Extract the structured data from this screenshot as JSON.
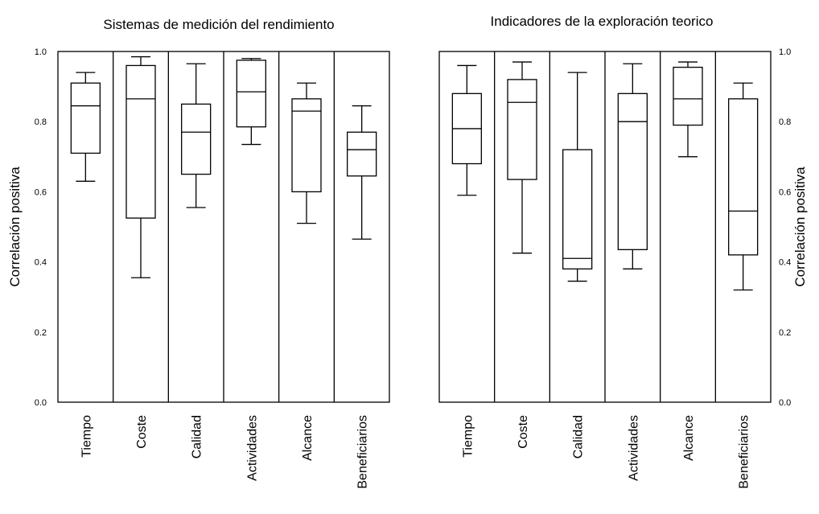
{
  "chart_data": [
    {
      "type": "box",
      "title": "Sistemas de medición del rendimiento",
      "ylabel": "Correlación positiva",
      "ylim": [
        0,
        1
      ],
      "yticks": [
        "0.0",
        "0.2",
        "0.4",
        "0.6",
        "0.8",
        "1.0"
      ],
      "y_axis_side": "left",
      "categories": [
        "Tiempo",
        "Coste",
        "Calidad",
        "Actividades",
        "Alcance",
        "Beneficiarios"
      ],
      "boxes": [
        {
          "whisker_low": 0.63,
          "q1": 0.71,
          "median": 0.845,
          "q3": 0.91,
          "whisker_high": 0.94
        },
        {
          "whisker_low": 0.355,
          "q1": 0.525,
          "median": 0.865,
          "q3": 0.96,
          "whisker_high": 0.985
        },
        {
          "whisker_low": 0.555,
          "q1": 0.65,
          "median": 0.77,
          "q3": 0.85,
          "whisker_high": 0.965
        },
        {
          "whisker_low": 0.735,
          "q1": 0.785,
          "median": 0.885,
          "q3": 0.975,
          "whisker_high": 0.98
        },
        {
          "whisker_low": 0.51,
          "q1": 0.6,
          "median": 0.83,
          "q3": 0.865,
          "whisker_high": 0.91
        },
        {
          "whisker_low": 0.465,
          "q1": 0.645,
          "median": 0.72,
          "q3": 0.77,
          "whisker_high": 0.845
        }
      ]
    },
    {
      "type": "box",
      "title": "Indicadores de la exploración teorico",
      "ylabel": "Correlación positiva",
      "ylim": [
        0,
        1
      ],
      "yticks": [
        "0.0",
        "0.2",
        "0.4",
        "0.6",
        "0.8",
        "1.0"
      ],
      "y_axis_side": "right",
      "categories": [
        "Tiempo",
        "Coste",
        "Calidad",
        "Actividades",
        "Alcance",
        "Beneficiarios"
      ],
      "boxes": [
        {
          "whisker_low": 0.59,
          "q1": 0.68,
          "median": 0.78,
          "q3": 0.88,
          "whisker_high": 0.96
        },
        {
          "whisker_low": 0.425,
          "q1": 0.635,
          "median": 0.855,
          "q3": 0.92,
          "whisker_high": 0.97
        },
        {
          "whisker_low": 0.345,
          "q1": 0.38,
          "median": 0.41,
          "q3": 0.72,
          "whisker_high": 0.94
        },
        {
          "whisker_low": 0.38,
          "q1": 0.435,
          "median": 0.8,
          "q3": 0.88,
          "whisker_high": 0.965
        },
        {
          "whisker_low": 0.7,
          "q1": 0.79,
          "median": 0.865,
          "q3": 0.955,
          "whisker_high": 0.97
        },
        {
          "whisker_low": 0.32,
          "q1": 0.42,
          "median": 0.545,
          "q3": 0.865,
          "whisker_high": 0.91
        }
      ]
    }
  ]
}
